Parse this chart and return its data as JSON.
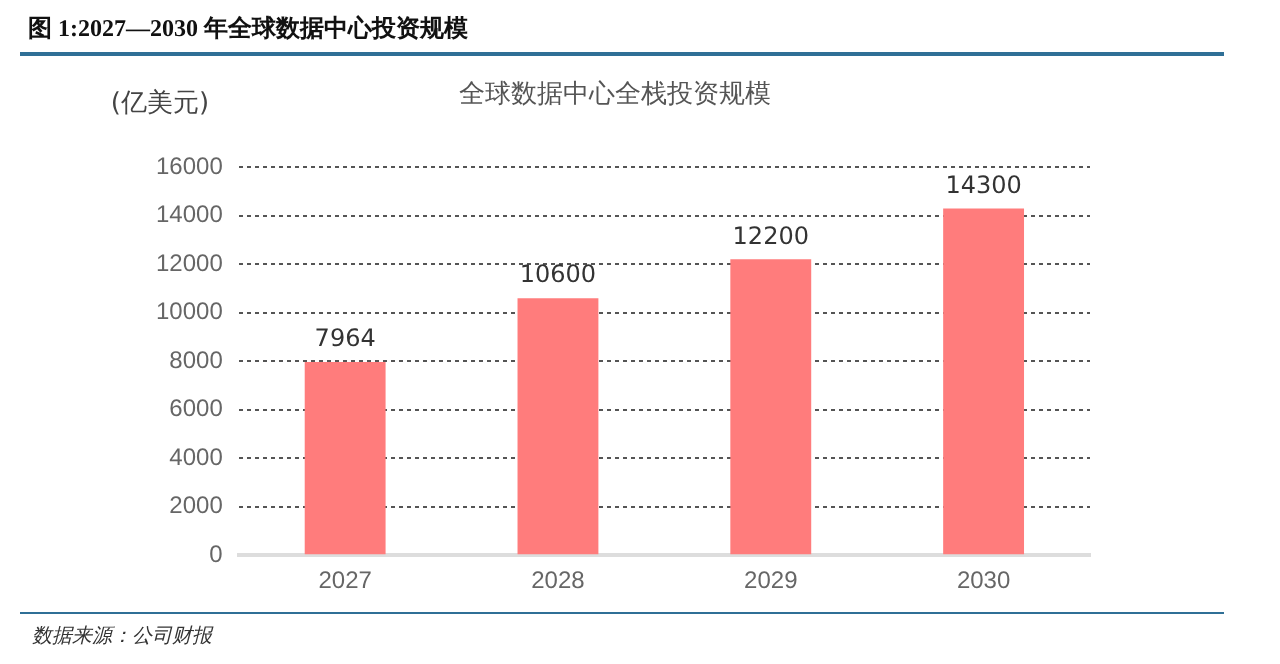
{
  "chart_data": {
    "type": "bar",
    "title": "图 1:2027—2030 年全球数据中心投资规模",
    "subtitle": "全球数据中心全栈投资规模",
    "ylabel": "(亿美元)",
    "categories": [
      "2027",
      "2028",
      "2029",
      "2030"
    ],
    "values": [
      7964,
      10600,
      12200,
      14300
    ],
    "color": "#ff7c7c",
    "ylim": [
      0,
      16000
    ],
    "yticks": [
      0,
      2000,
      4000,
      6000,
      8000,
      10000,
      12000,
      14000,
      16000
    ],
    "grid": "y",
    "data_labels": true,
    "legend": false,
    "annotations": [
      "数据来源：公司财报"
    ]
  }
}
